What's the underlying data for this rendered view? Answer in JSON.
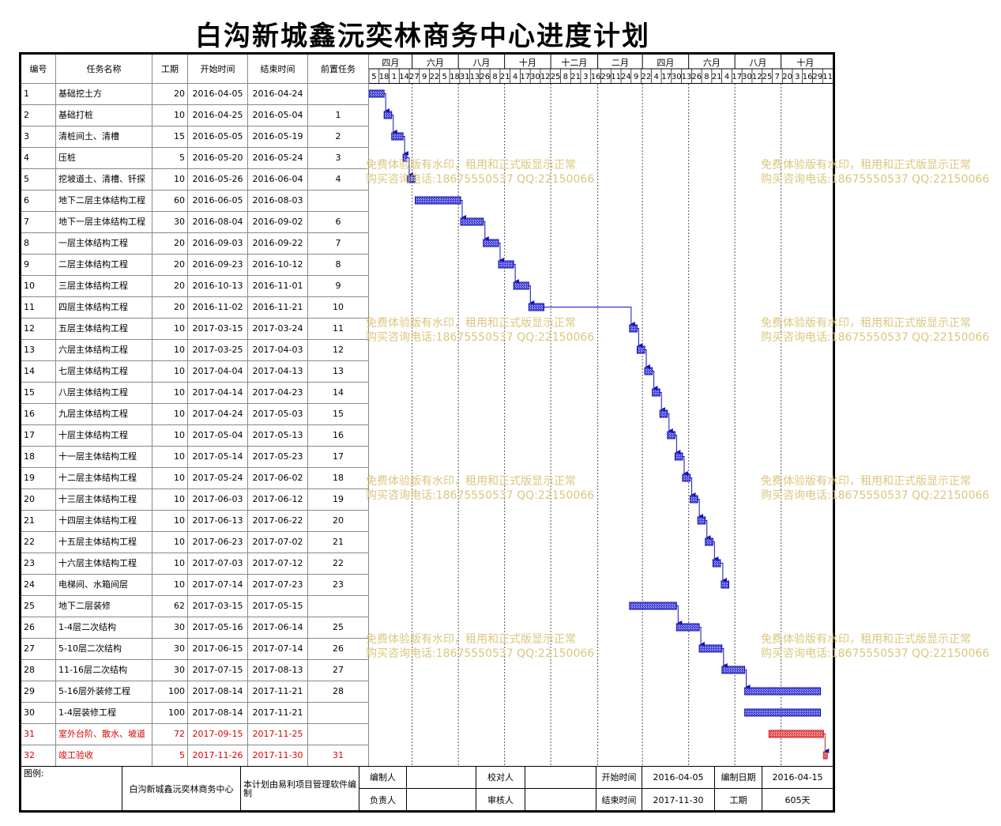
{
  "title": "白沟新城鑫沅奕林商务中心进度计划",
  "headers": {
    "id": "编号",
    "name": "任务名称",
    "duration": "工期",
    "start": "开始时间",
    "end": "结束时间",
    "predecessor": "前置任务"
  },
  "timeline": {
    "months": [
      "四月",
      "六月",
      "八月",
      "十月",
      "十二月",
      "二月",
      "四月",
      "六月",
      "八月",
      "十月"
    ],
    "day_ticks": [
      "5",
      "18",
      "1",
      "14",
      "27",
      "9",
      "22",
      "5",
      "18",
      "31",
      "13",
      "26",
      "8",
      "21",
      "4",
      "17",
      "30",
      "12",
      "25",
      "8",
      "21",
      "3",
      "16",
      "29",
      "11",
      "24",
      "9",
      "22",
      "4",
      "17",
      "30",
      "13",
      "26",
      "8",
      "21",
      "4",
      "17",
      "30",
      "12",
      "25",
      "7",
      "20",
      "3",
      "16",
      "29",
      "11"
    ]
  },
  "tasks": [
    {
      "id": "1",
      "name": "基础挖土方",
      "duration": "20",
      "start": "2016-04-05",
      "end": "2016-04-24",
      "pred": "",
      "critical": false
    },
    {
      "id": "2",
      "name": "基础打桩",
      "duration": "10",
      "start": "2016-04-25",
      "end": "2016-05-04",
      "pred": "1",
      "critical": false
    },
    {
      "id": "3",
      "name": "清桩间土、清槽",
      "duration": "15",
      "start": "2016-05-05",
      "end": "2016-05-19",
      "pred": "2",
      "critical": false
    },
    {
      "id": "4",
      "name": "压桩",
      "duration": "5",
      "start": "2016-05-20",
      "end": "2016-05-24",
      "pred": "3",
      "critical": false
    },
    {
      "id": "5",
      "name": "挖坡道土、清槽、钎探",
      "duration": "10",
      "start": "2016-05-26",
      "end": "2016-06-04",
      "pred": "4",
      "critical": false
    },
    {
      "id": "6",
      "name": "地下二层主体结构工程",
      "duration": "60",
      "start": "2016-06-05",
      "end": "2016-08-03",
      "pred": "",
      "critical": false
    },
    {
      "id": "7",
      "name": "地下一层主体结构工程",
      "duration": "30",
      "start": "2016-08-04",
      "end": "2016-09-02",
      "pred": "6",
      "critical": false
    },
    {
      "id": "8",
      "name": "一层主体结构工程",
      "duration": "20",
      "start": "2016-09-03",
      "end": "2016-09-22",
      "pred": "7",
      "critical": false
    },
    {
      "id": "9",
      "name": "二层主体结构工程",
      "duration": "20",
      "start": "2016-09-23",
      "end": "2016-10-12",
      "pred": "8",
      "critical": false
    },
    {
      "id": "10",
      "name": "三层主体结构工程",
      "duration": "20",
      "start": "2016-10-13",
      "end": "2016-11-01",
      "pred": "9",
      "critical": false
    },
    {
      "id": "11",
      "name": "四层主体结构工程",
      "duration": "20",
      "start": "2016-11-02",
      "end": "2016-11-21",
      "pred": "10",
      "critical": false
    },
    {
      "id": "12",
      "name": "五层主体结构工程",
      "duration": "10",
      "start": "2017-03-15",
      "end": "2017-03-24",
      "pred": "11",
      "critical": false
    },
    {
      "id": "13",
      "name": "六层主体结构工程",
      "duration": "10",
      "start": "2017-03-25",
      "end": "2017-04-03",
      "pred": "12",
      "critical": false
    },
    {
      "id": "14",
      "name": "七层主体结构工程",
      "duration": "10",
      "start": "2017-04-04",
      "end": "2017-04-13",
      "pred": "13",
      "critical": false
    },
    {
      "id": "15",
      "name": "八层主体结构工程",
      "duration": "10",
      "start": "2017-04-14",
      "end": "2017-04-23",
      "pred": "14",
      "critical": false
    },
    {
      "id": "16",
      "name": "九层主体结构工程",
      "duration": "10",
      "start": "2017-04-24",
      "end": "2017-05-03",
      "pred": "15",
      "critical": false
    },
    {
      "id": "17",
      "name": "十层主体结构工程",
      "duration": "10",
      "start": "2017-05-04",
      "end": "2017-05-13",
      "pred": "16",
      "critical": false
    },
    {
      "id": "18",
      "name": "十一层主体结构工程",
      "duration": "10",
      "start": "2017-05-14",
      "end": "2017-05-23",
      "pred": "17",
      "critical": false
    },
    {
      "id": "19",
      "name": "十二层主体结构工程",
      "duration": "10",
      "start": "2017-05-24",
      "end": "2017-06-02",
      "pred": "18",
      "critical": false
    },
    {
      "id": "20",
      "name": "十三层主体结构工程",
      "duration": "10",
      "start": "2017-06-03",
      "end": "2017-06-12",
      "pred": "19",
      "critical": false
    },
    {
      "id": "21",
      "name": "十四层主体结构工程",
      "duration": "10",
      "start": "2017-06-13",
      "end": "2017-06-22",
      "pred": "20",
      "critical": false
    },
    {
      "id": "22",
      "name": "十五层主体结构工程",
      "duration": "10",
      "start": "2017-06-23",
      "end": "2017-07-02",
      "pred": "21",
      "critical": false
    },
    {
      "id": "23",
      "name": "十六层主体结构工程",
      "duration": "10",
      "start": "2017-07-03",
      "end": "2017-07-12",
      "pred": "22",
      "critical": false
    },
    {
      "id": "24",
      "name": "电梯间、水箱间层",
      "duration": "10",
      "start": "2017-07-14",
      "end": "2017-07-23",
      "pred": "23",
      "critical": false
    },
    {
      "id": "25",
      "name": "地下二层装修",
      "duration": "62",
      "start": "2017-03-15",
      "end": "2017-05-15",
      "pred": "",
      "critical": false
    },
    {
      "id": "26",
      "name": "1-4层二次结构",
      "duration": "30",
      "start": "2017-05-16",
      "end": "2017-06-14",
      "pred": "25",
      "critical": false
    },
    {
      "id": "27",
      "name": "5-10层二次结构",
      "duration": "30",
      "start": "2017-06-15",
      "end": "2017-07-14",
      "pred": "26",
      "critical": false
    },
    {
      "id": "28",
      "name": "11-16层二次结构",
      "duration": "30",
      "start": "2017-07-15",
      "end": "2017-08-13",
      "pred": "27",
      "critical": false
    },
    {
      "id": "29",
      "name": "5-16层外装修工程",
      "duration": "100",
      "start": "2017-08-14",
      "end": "2017-11-21",
      "pred": "28",
      "critical": false
    },
    {
      "id": "30",
      "name": "1-4层装修工程",
      "duration": "100",
      "start": "2017-08-14",
      "end": "2017-11-21",
      "pred": "",
      "critical": false
    },
    {
      "id": "31",
      "name": "室外台阶、散水、坡道",
      "duration": "72",
      "start": "2017-09-15",
      "end": "2017-11-25",
      "pred": "",
      "critical": true
    },
    {
      "id": "32",
      "name": "竣工验收",
      "duration": "5",
      "start": "2017-11-26",
      "end": "2017-11-30",
      "pred": "31",
      "critical": true
    }
  ],
  "footer": {
    "legend_label": "图例:",
    "project_name": "白沟新城鑫沅奕林商务中心",
    "software_note": "本计划由易利项目管理软件编制",
    "compiler_label": "编制人",
    "compiler_value": "",
    "checker_label": "校对人",
    "checker_value": "",
    "start_label": "开始时间",
    "start_value": "2016-04-05",
    "date_label": "编制日期",
    "date_value": "2016-04-15",
    "owner_label": "负责人",
    "owner_value": "",
    "reviewer_label": "审核人",
    "reviewer_value": "",
    "end_label": "结束时间",
    "end_value": "2017-11-30",
    "duration_label": "工期",
    "duration_value": "605天"
  },
  "watermark": {
    "line1": "免费体验版有水印，租用和正式版显示正常",
    "line2": "购买咨询电话:18675550537 QQ:22150066"
  },
  "colors": {
    "bar": "#2828c8",
    "bar_critical": "#e05050",
    "critical_text": "#e00000",
    "watermark": "#d8c070"
  },
  "chart_data": {
    "type": "gantt",
    "axis_start": "2016-04-05",
    "axis_end": "2017-12-04",
    "tasks_ref": "tasks"
  }
}
